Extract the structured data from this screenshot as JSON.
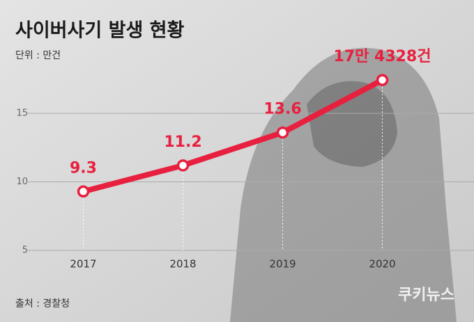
{
  "chart_data": {
    "type": "line",
    "title": "사이버사기 발생 현황",
    "subtitle": "단위 : 만건",
    "source": "출처 : 경찰청",
    "logo": "쿠키뉴스",
    "categories": [
      "2017",
      "2018",
      "2019",
      "2020"
    ],
    "values": [
      9.3,
      11.2,
      13.6,
      17.4328
    ],
    "value_labels": [
      "9.3",
      "11.2",
      "13.6",
      "17만 4328건"
    ],
    "color": "#e8203f",
    "ylim": [
      5,
      20
    ],
    "yticks": [
      5,
      10,
      15
    ],
    "grid": true
  }
}
